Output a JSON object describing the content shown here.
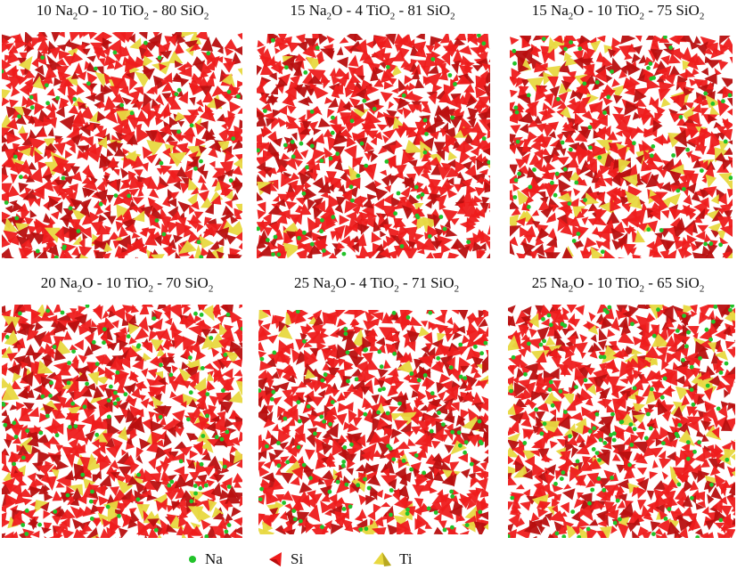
{
  "panels": [
    {
      "title_parts": [
        "10 Na",
        "2",
        "O - 10 TiO",
        "2",
        " - 80 SiO",
        "2"
      ],
      "ti_fraction": 0.1,
      "na_fraction": 0.1
    },
    {
      "title_parts": [
        "15 Na",
        "2",
        "O - 4 TiO",
        "2",
        " - 81 SiO",
        "2"
      ],
      "ti_fraction": 0.04,
      "na_fraction": 0.15
    },
    {
      "title_parts": [
        "15 Na",
        "2",
        "O - 10 TiO",
        "2",
        " - 75 SiO",
        "2"
      ],
      "ti_fraction": 0.1,
      "na_fraction": 0.15
    },
    {
      "title_parts": [
        "20 Na",
        "2",
        "O - 10 TiO",
        "2",
        " - 70 SiO",
        "2"
      ],
      "ti_fraction": 0.1,
      "na_fraction": 0.2
    },
    {
      "title_parts": [
        "25 Na",
        "2",
        "O - 4 TiO",
        "2",
        " - 71 SiO",
        "2"
      ],
      "ti_fraction": 0.04,
      "na_fraction": 0.25
    },
    {
      "title_parts": [
        "25 Na",
        "2",
        "O - 10 TiO",
        "2",
        " - 65 SiO",
        "2"
      ],
      "ti_fraction": 0.1,
      "na_fraction": 0.25
    }
  ],
  "legend": [
    {
      "label": "Na",
      "icon": "green-sphere-icon",
      "color": "#22c32a"
    },
    {
      "label": "Si",
      "icon": "red-tetrahedron-icon",
      "color": "#ee1c1c"
    },
    {
      "label": "Ti",
      "icon": "yellow-tetrahedron-icon",
      "color": "#e6d83a"
    }
  ],
  "colors": {
    "si": "#ee1c1c",
    "si_dark": "#b80f0f",
    "ti": "#e8d840",
    "ti_dark": "#b8a820",
    "na": "#22c32a"
  }
}
